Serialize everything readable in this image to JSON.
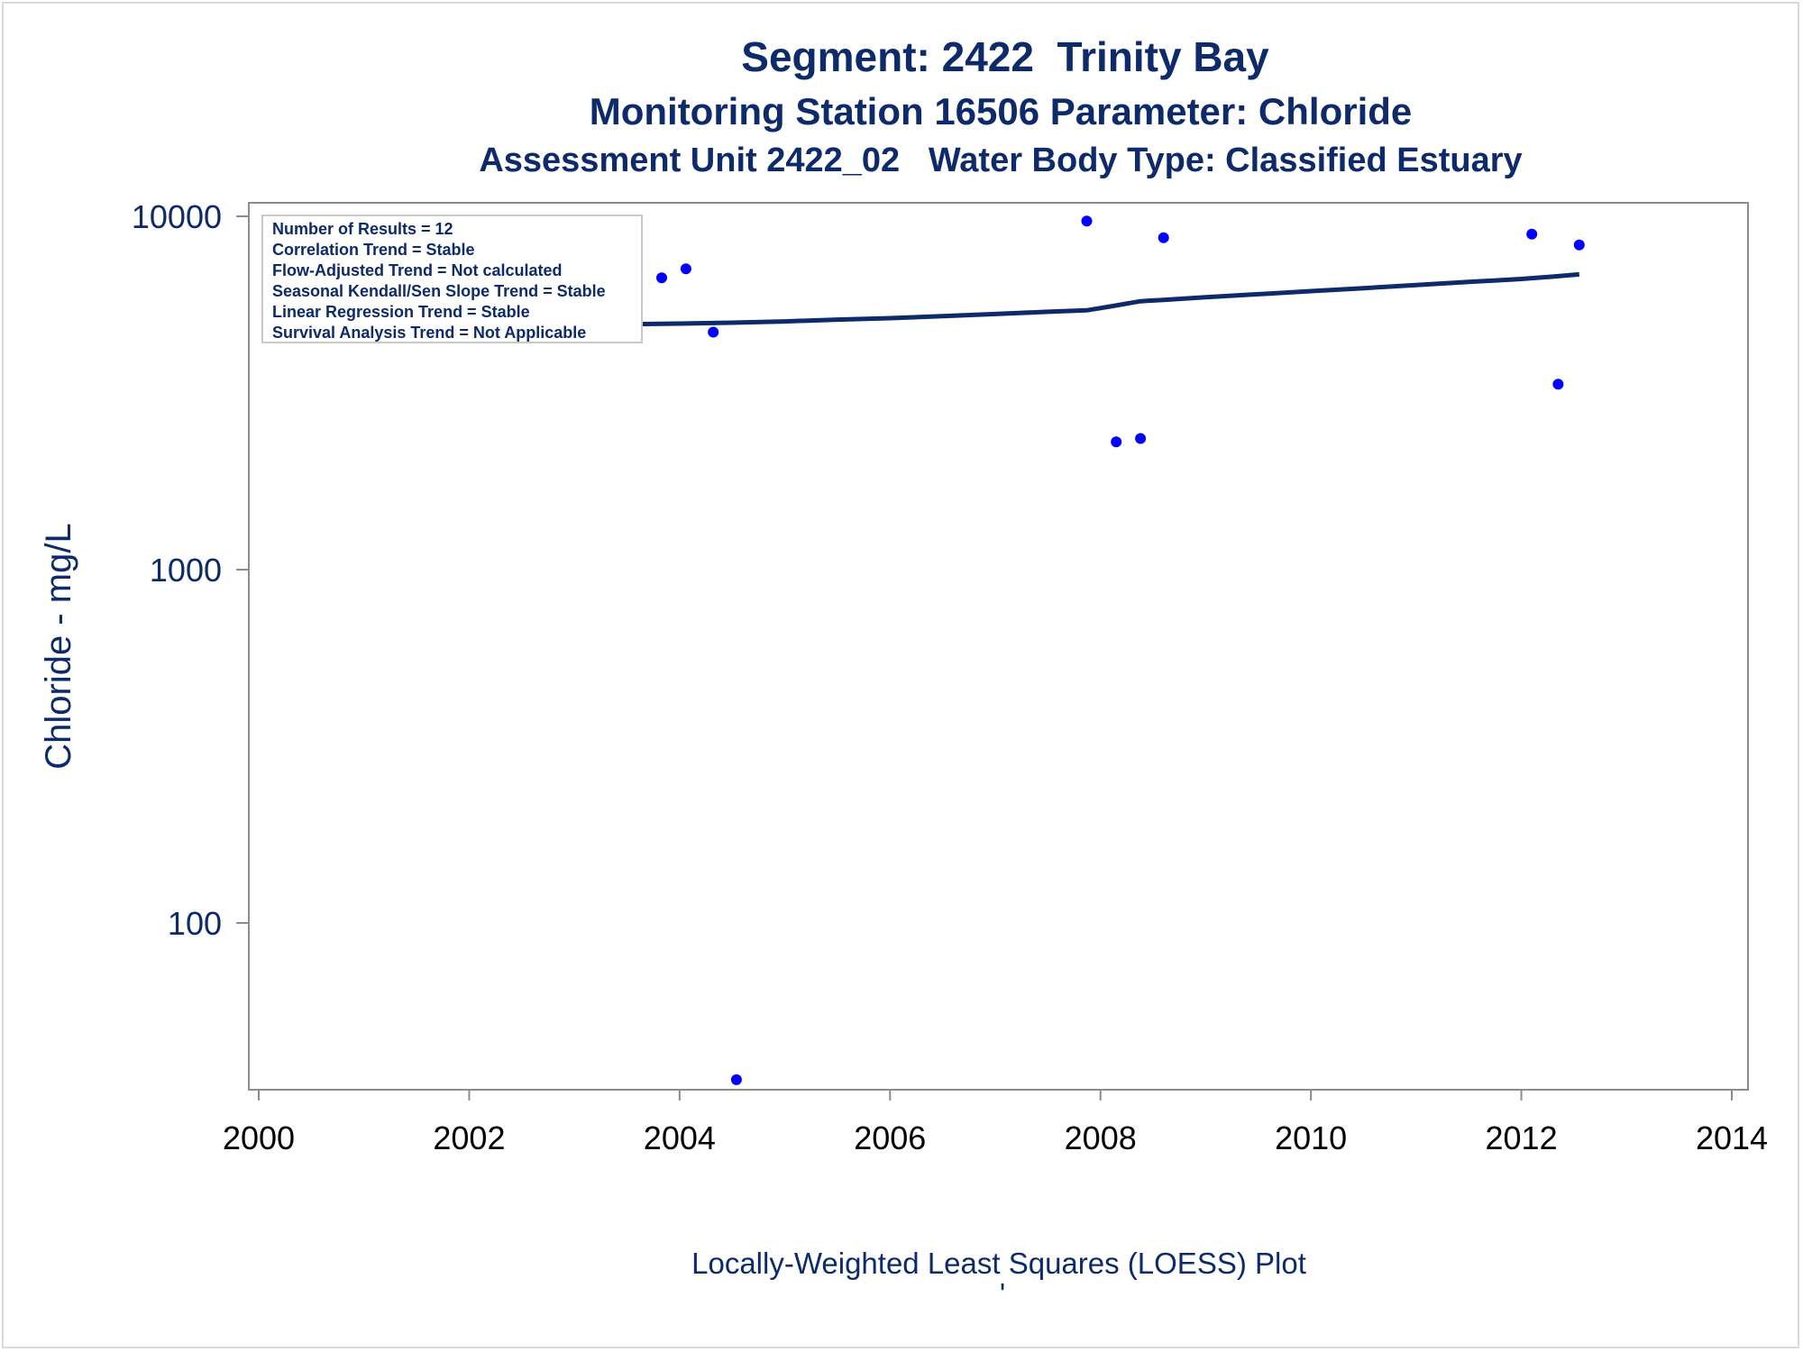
{
  "titles": {
    "line1": "Segment: 2422  Trinity Bay",
    "line2": "Monitoring Station 16506 Parameter: Chloride",
    "line3": "Assessment Unit 2422_02   Water Body Type: Classified Estuary"
  },
  "stats_box": {
    "lines": [
      "Number of Results = 12",
      "Correlation Trend = Stable",
      "Flow-Adjusted Trend = Not calculated",
      "Seasonal Kendall/Sen Slope Trend = Stable",
      "Linear Regression Trend = Stable",
      "Survival Analysis Trend = Not Applicable"
    ]
  },
  "footnote": "Locally-Weighted Least Squares (LOESS) Plot",
  "footnote_mark": "'",
  "colors": {
    "text": "#0d2a6b",
    "points": "#0000ff",
    "loess_line": "#0d2a6b",
    "axis": "#8c8c8c"
  },
  "chart_data": {
    "type": "scatter",
    "xlabel": "",
    "ylabel": "Chloride - mg/L",
    "y_scale": "log",
    "xlim": [
      2000,
      2014
    ],
    "ylim": [
      36,
      11000
    ],
    "x_ticks": [
      2000,
      2002,
      2004,
      2006,
      2008,
      2010,
      2012,
      2014
    ],
    "y_ticks": [
      100,
      1000,
      10000
    ],
    "x_tick_labels": [
      "2000",
      "2002",
      "2004",
      "2006",
      "2008",
      "2010",
      "2012",
      "2014"
    ],
    "y_tick_labels": [
      "100",
      "1000",
      "10000"
    ],
    "grid": false,
    "legend": "top-left",
    "series": [
      {
        "kind": "points",
        "x": [
          2000.54,
          2003.83,
          2004.06,
          2004.32,
          2004.54,
          2007.87,
          2008.15,
          2008.38,
          2008.6,
          2012.1,
          2012.35,
          2012.55
        ],
        "y": [
          5200,
          6700,
          7100,
          4700,
          36,
          9700,
          2300,
          2350,
          8700,
          8900,
          3350,
          8300
        ]
      },
      {
        "kind": "line",
        "x": [
          2000.5,
          2001.0,
          2002.0,
          2003.0,
          2003.5,
          2004.0,
          2004.5,
          2005.0,
          2005.5,
          2006.0,
          2006.5,
          2007.0,
          2007.5,
          2007.87,
          2008.1,
          2008.38,
          2008.6,
          2009.0,
          2009.5,
          2010.0,
          2010.5,
          2011.0,
          2011.5,
          2012.0,
          2012.3,
          2012.55
        ],
        "y": [
          4880,
          4890,
          4920,
          4940,
          4950,
          4970,
          5000,
          5040,
          5100,
          5150,
          5220,
          5290,
          5370,
          5420,
          5560,
          5750,
          5800,
          5900,
          6020,
          6140,
          6260,
          6390,
          6520,
          6650,
          6750,
          6850
        ]
      }
    ]
  }
}
